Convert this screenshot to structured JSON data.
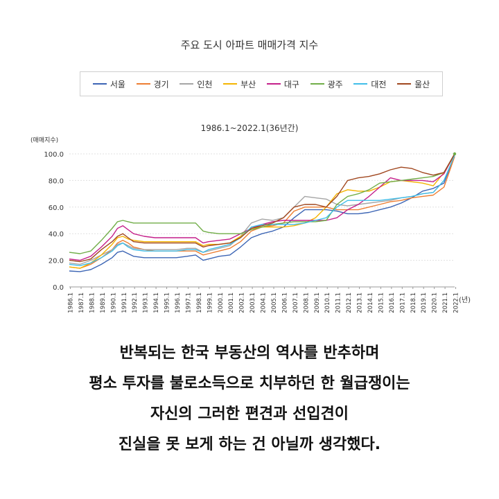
{
  "chart_data": {
    "type": "line",
    "title": "주요 도시 아파트 매매가격 지수",
    "subtitle": "1986.1~2022.1(36년간)",
    "ylabel": "(매매지수)",
    "xlabel": "(년)",
    "ylim": [
      0,
      100
    ],
    "yticks": [
      "0.0",
      "20.0",
      "40.0",
      "60.0",
      "80.0",
      "100.0"
    ],
    "xticks": [
      "1986.1",
      "1987.1",
      "1988.1",
      "1989.1",
      "1990.1",
      "1991.1",
      "1992.1",
      "1993.1",
      "1994.1",
      "1995.1",
      "1996.1",
      "1997.1",
      "1998.1",
      "1999.1",
      "2000.1",
      "2001.1",
      "2002.1",
      "2003.1",
      "2004.1",
      "2005.1",
      "2006.1",
      "2007.1",
      "2008.1",
      "2009.1",
      "2010.1",
      "2011.1",
      "2012.1",
      "2013.1",
      "2014.1",
      "2015.1",
      "2016.1",
      "2017.1",
      "2018.1",
      "2019.1",
      "2020.1",
      "2021.1",
      "2022.1"
    ],
    "legend_position": "top",
    "grid": "horizontal",
    "x": [
      1986.0,
      1987.0,
      1988.0,
      1989.0,
      1990.0,
      1990.5,
      1991.0,
      1991.5,
      1992.0,
      1993.0,
      1994.0,
      1995.0,
      1996.0,
      1997.0,
      1997.8,
      1998.5,
      1999.0,
      2000.0,
      2001.0,
      2002.0,
      2003.0,
      2004.0,
      2005.0,
      2006.0,
      2007.0,
      2008.0,
      2009.0,
      2010.0,
      2011.0,
      2012.0,
      2013.0,
      2014.0,
      2015.0,
      2016.0,
      2017.0,
      2018.0,
      2019.0,
      2020.0,
      2021.0,
      2022.0
    ],
    "series": [
      {
        "name": "서울",
        "color": "#3b64b4",
        "values": [
          12,
          11.5,
          13,
          17,
          22,
          26,
          27,
          25,
          23,
          22,
          22,
          22,
          22,
          23,
          24,
          20,
          21,
          23,
          24,
          30,
          37,
          40,
          42,
          45,
          52,
          58,
          58,
          58,
          57,
          55,
          55,
          56,
          58,
          60,
          63,
          67,
          72,
          74,
          78,
          99
        ]
      },
      {
        "name": "경기",
        "color": "#ed7d31",
        "values": [
          15,
          14,
          17,
          22,
          28,
          33,
          35,
          33,
          30,
          28,
          27,
          27,
          27,
          27,
          27,
          24,
          25,
          27,
          29,
          34,
          42,
          45,
          46,
          48,
          57,
          60,
          60,
          60,
          58,
          58,
          58,
          60,
          62,
          64,
          65,
          67,
          68,
          69,
          75,
          98
        ]
      },
      {
        "name": "인천",
        "color": "#a5a5a5",
        "values": [
          18,
          17,
          20,
          24,
          28,
          32,
          33,
          31,
          29,
          28,
          28,
          28,
          28,
          29,
          29,
          26,
          27,
          29,
          31,
          38,
          48,
          51,
          50,
          52,
          60,
          68,
          67,
          66,
          62,
          61,
          62,
          63,
          64,
          65,
          67,
          68,
          70,
          71,
          80,
          99
        ]
      },
      {
        "name": "부산",
        "color": "#f4b400",
        "values": [
          15,
          14,
          18,
          24,
          32,
          37,
          38,
          36,
          35,
          34,
          34,
          34,
          34,
          34,
          34,
          31,
          32,
          32,
          33,
          38,
          44,
          45,
          45,
          45,
          46,
          48,
          52,
          60,
          70,
          73,
          72,
          72,
          75,
          79,
          80,
          79,
          78,
          76,
          86,
          99
        ]
      },
      {
        "name": "대구",
        "color": "#c41f8a",
        "values": [
          21,
          20,
          23,
          30,
          38,
          44,
          46,
          43,
          40,
          38,
          37,
          37,
          37,
          37,
          37,
          33,
          34,
          35,
          36,
          40,
          44,
          47,
          49,
          50,
          50,
          50,
          50,
          50,
          52,
          58,
          62,
          68,
          75,
          82,
          80,
          80,
          80,
          79,
          85,
          100
        ]
      },
      {
        "name": "광주",
        "color": "#70ad47",
        "values": [
          26,
          25,
          27,
          35,
          44,
          49,
          50,
          49,
          48,
          48,
          48,
          48,
          48,
          48,
          48,
          42,
          41,
          40,
          40,
          40,
          43,
          45,
          47,
          48,
          49,
          49,
          49,
          50,
          62,
          68,
          70,
          73,
          78,
          79,
          80,
          81,
          82,
          83,
          86,
          100
        ]
      },
      {
        "name": "대전",
        "color": "#3fbde8",
        "values": [
          17,
          16,
          18,
          22,
          27,
          31,
          33,
          30,
          28,
          27,
          27,
          27,
          27,
          28,
          28,
          26,
          28,
          30,
          32,
          37,
          45,
          47,
          47,
          47,
          47,
          48,
          50,
          52,
          60,
          65,
          65,
          65,
          65,
          66,
          67,
          68,
          70,
          71,
          80,
          99
        ]
      },
      {
        "name": "울산",
        "color": "#a0461e",
        "values": [
          20,
          19,
          21,
          28,
          34,
          38,
          40,
          37,
          34,
          33,
          33,
          33,
          33,
          33,
          33,
          30,
          31,
          32,
          33,
          37,
          44,
          46,
          48,
          52,
          60,
          62,
          62,
          60,
          68,
          80,
          82,
          83,
          85,
          88,
          90,
          89,
          86,
          84,
          86,
          100
        ]
      }
    ]
  },
  "caption": {
    "line1": "반복되는 한국 부동산의 역사를 반추하며",
    "line2": "평소 투자를 불로소득으로 치부하던 한 월급쟁이는",
    "line3": "자신의 그러한 편견과 선입견이",
    "line4": "진실을 못 보게 하는 건 아닐까 생각했다."
  }
}
